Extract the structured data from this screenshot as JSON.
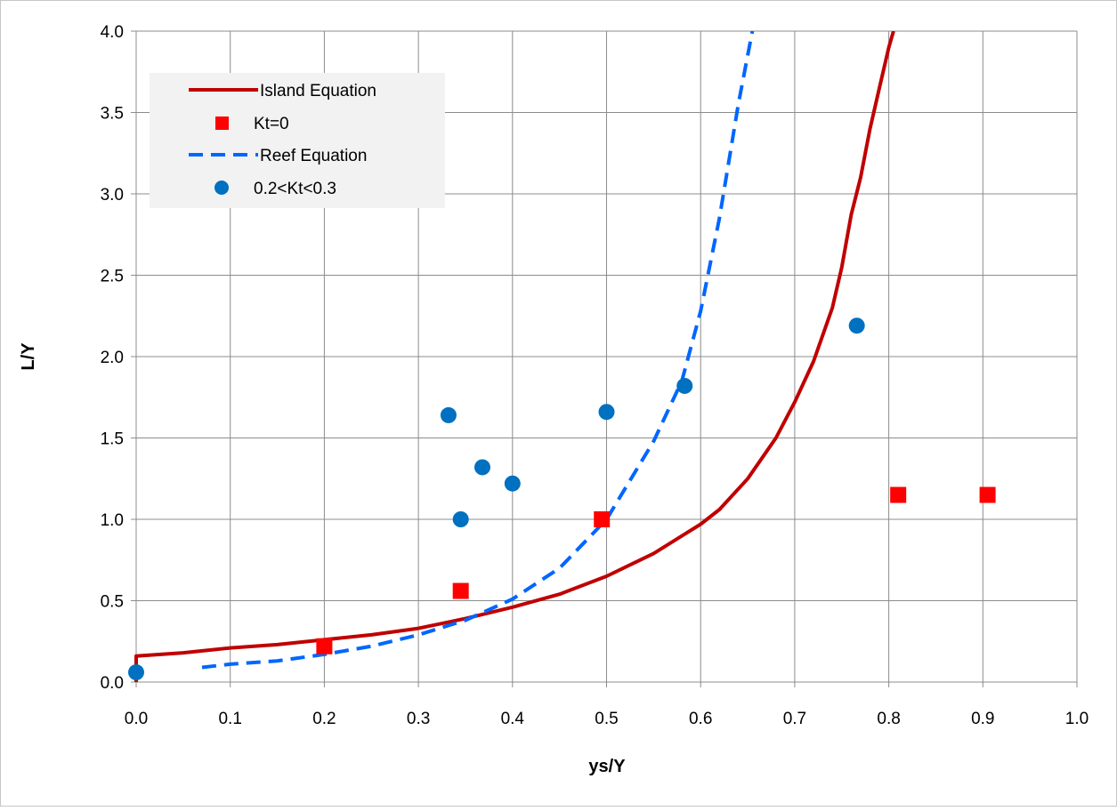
{
  "chart_data": {
    "type": "scatter",
    "xlabel": "ys/Y",
    "ylabel": "L/Y",
    "xlim": [
      0.0,
      1.0
    ],
    "ylim": [
      0.0,
      4.0
    ],
    "x_ticks": [
      "0.0",
      "0.1",
      "0.2",
      "0.3",
      "0.4",
      "0.5",
      "0.6",
      "0.7",
      "0.8",
      "0.9",
      "1.0"
    ],
    "y_ticks": [
      "0.0",
      "0.5",
      "1.0",
      "1.5",
      "2.0",
      "2.5",
      "3.0",
      "3.5",
      "4.0"
    ],
    "grid": true,
    "legend_position": "top-left",
    "series": [
      {
        "name": "Island Equation",
        "kind": "line",
        "style": "solid",
        "color": "#c00000",
        "points": [
          [
            0.0,
            0.0
          ],
          [
            0.0,
            0.16
          ],
          [
            0.05,
            0.18
          ],
          [
            0.1,
            0.21
          ],
          [
            0.15,
            0.23
          ],
          [
            0.2,
            0.26
          ],
          [
            0.25,
            0.29
          ],
          [
            0.3,
            0.33
          ],
          [
            0.35,
            0.39
          ],
          [
            0.4,
            0.46
          ],
          [
            0.45,
            0.54
          ],
          [
            0.5,
            0.65
          ],
          [
            0.55,
            0.79
          ],
          [
            0.6,
            0.97
          ],
          [
            0.62,
            1.06
          ],
          [
            0.65,
            1.25
          ],
          [
            0.68,
            1.5
          ],
          [
            0.7,
            1.72
          ],
          [
            0.72,
            1.97
          ],
          [
            0.74,
            2.3
          ],
          [
            0.75,
            2.55
          ],
          [
            0.76,
            2.87
          ],
          [
            0.77,
            3.1
          ],
          [
            0.78,
            3.4
          ],
          [
            0.79,
            3.65
          ],
          [
            0.8,
            3.9
          ],
          [
            0.805,
            4.0
          ]
        ]
      },
      {
        "name": "Kt=0",
        "kind": "marker",
        "marker": "square",
        "color": "#ff0000",
        "points": [
          [
            0.2,
            0.22
          ],
          [
            0.345,
            0.56
          ],
          [
            0.495,
            1.0
          ],
          [
            0.81,
            1.15
          ],
          [
            0.905,
            1.15
          ]
        ]
      },
      {
        "name": "Reef Equation",
        "kind": "line",
        "style": "dashed",
        "color": "#0066ff",
        "points": [
          [
            0.07,
            0.09
          ],
          [
            0.1,
            0.11
          ],
          [
            0.15,
            0.13
          ],
          [
            0.2,
            0.17
          ],
          [
            0.25,
            0.22
          ],
          [
            0.3,
            0.29
          ],
          [
            0.35,
            0.38
          ],
          [
            0.4,
            0.51
          ],
          [
            0.45,
            0.7
          ],
          [
            0.5,
            1.0
          ],
          [
            0.55,
            1.48
          ],
          [
            0.58,
            1.85
          ],
          [
            0.6,
            2.28
          ],
          [
            0.62,
            2.85
          ],
          [
            0.64,
            3.55
          ],
          [
            0.655,
            4.0
          ]
        ]
      },
      {
        "name": "0.2<Kt<0.3",
        "kind": "marker",
        "marker": "circle",
        "color": "#0070c0",
        "points": [
          [
            0.0,
            0.06
          ],
          [
            0.332,
            1.64
          ],
          [
            0.345,
            1.0
          ],
          [
            0.368,
            1.32
          ],
          [
            0.4,
            1.22
          ],
          [
            0.5,
            1.66
          ],
          [
            0.583,
            1.82
          ],
          [
            0.766,
            2.19
          ]
        ]
      }
    ]
  }
}
